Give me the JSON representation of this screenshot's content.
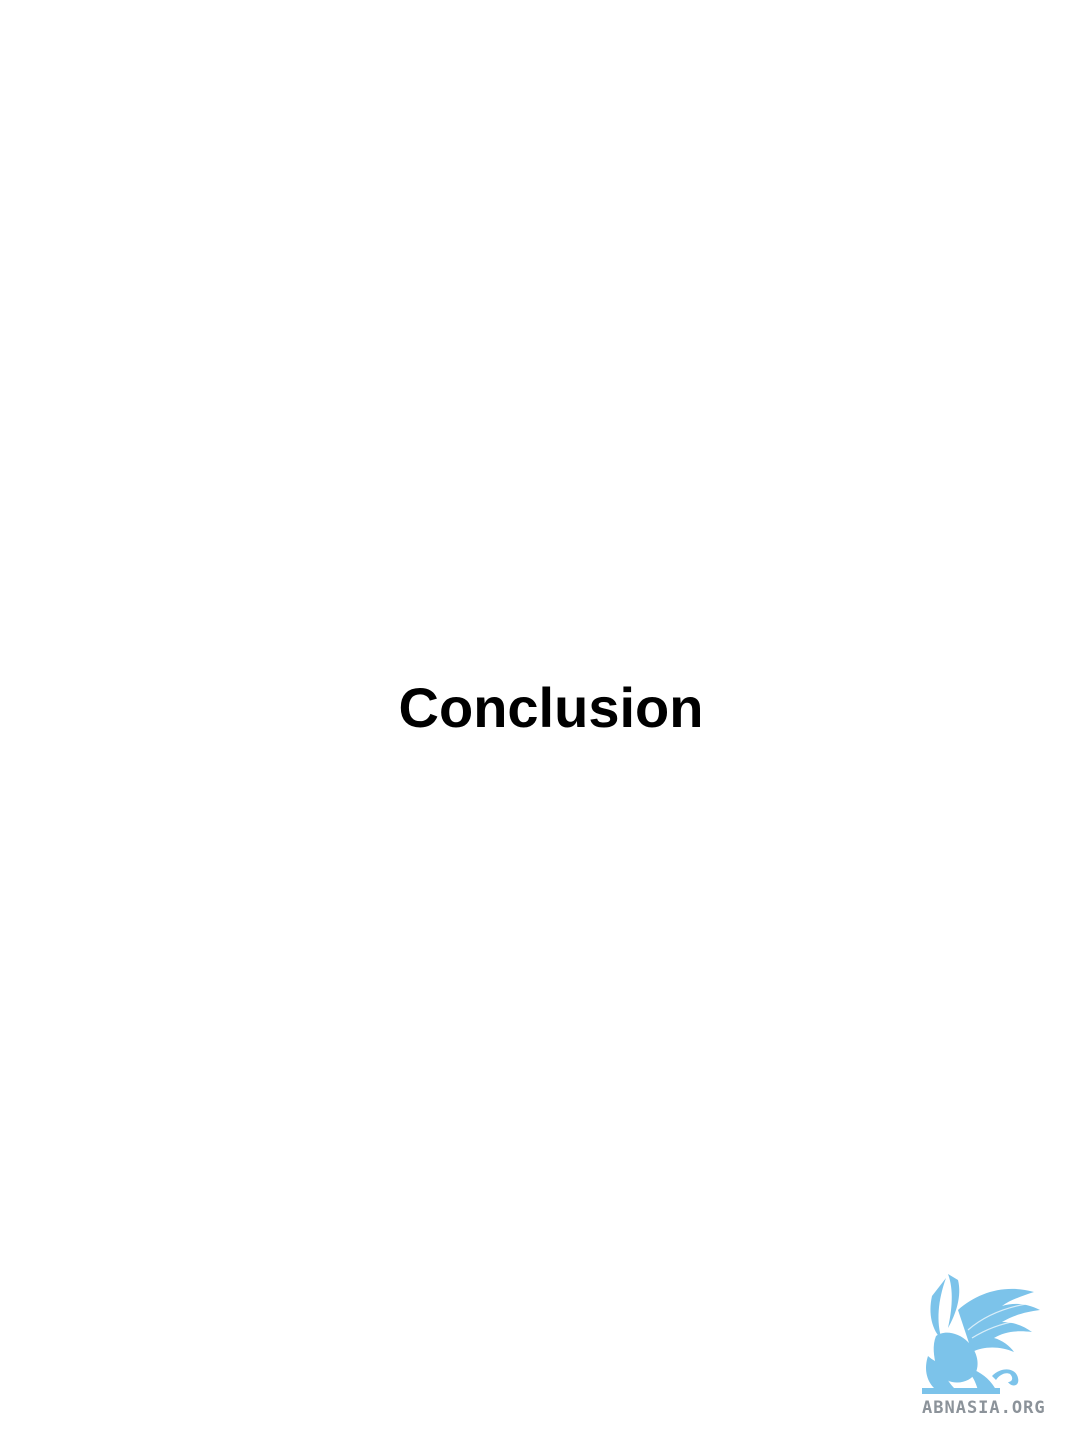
{
  "page": {
    "heading": "Conclusion"
  },
  "watermark": {
    "text": "ABNASIA.ORG",
    "icon": "griffin-logo-icon",
    "color": "#7cc3ea"
  }
}
